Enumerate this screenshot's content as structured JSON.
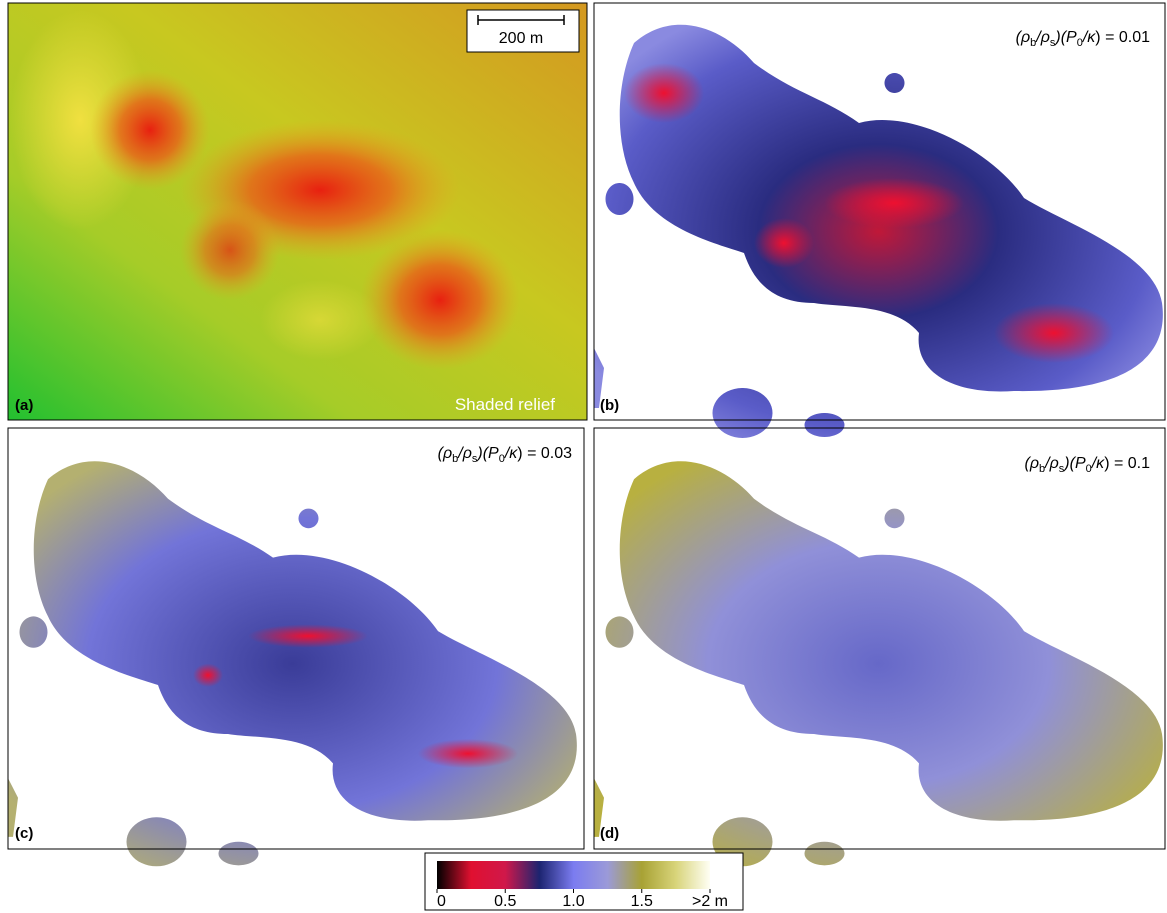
{
  "panels": [
    {
      "label": "(a)",
      "caption": "Shaded relief",
      "scale_bar": "200 m"
    },
    {
      "label": "(b)",
      "value": "0.01"
    },
    {
      "label": "(c)",
      "value": "0.03"
    },
    {
      "label": "(d)",
      "value": "0.1"
    }
  ],
  "formula": [
    {
      "text": "(ρ"
    },
    {
      "text": "b",
      "sub": true
    },
    {
      "text": "/ρ"
    },
    {
      "text": "s",
      "sub": true
    },
    {
      "text": ")(P"
    },
    {
      "text": "0",
      "sub": true
    },
    {
      "text": "/κ"
    },
    {
      "text": ") = "
    }
  ],
  "colorbar": {
    "range": [
      0,
      2
    ],
    "ticks": [
      {
        "value": 0,
        "label": "0"
      },
      {
        "value": 0.5,
        "label": "0.5"
      },
      {
        "value": 1,
        "label": "1.0"
      },
      {
        "value": 1.5,
        "label": "1.5"
      },
      {
        "value": 2,
        "label": ">2 m"
      }
    ],
    "colors": [
      "#000000",
      "#e01030",
      "#d0184a",
      "#1c2470",
      "#7b7cf0",
      "#9b9ad8",
      "#a8a234",
      "#d8d47a",
      "#fffff4"
    ]
  }
}
